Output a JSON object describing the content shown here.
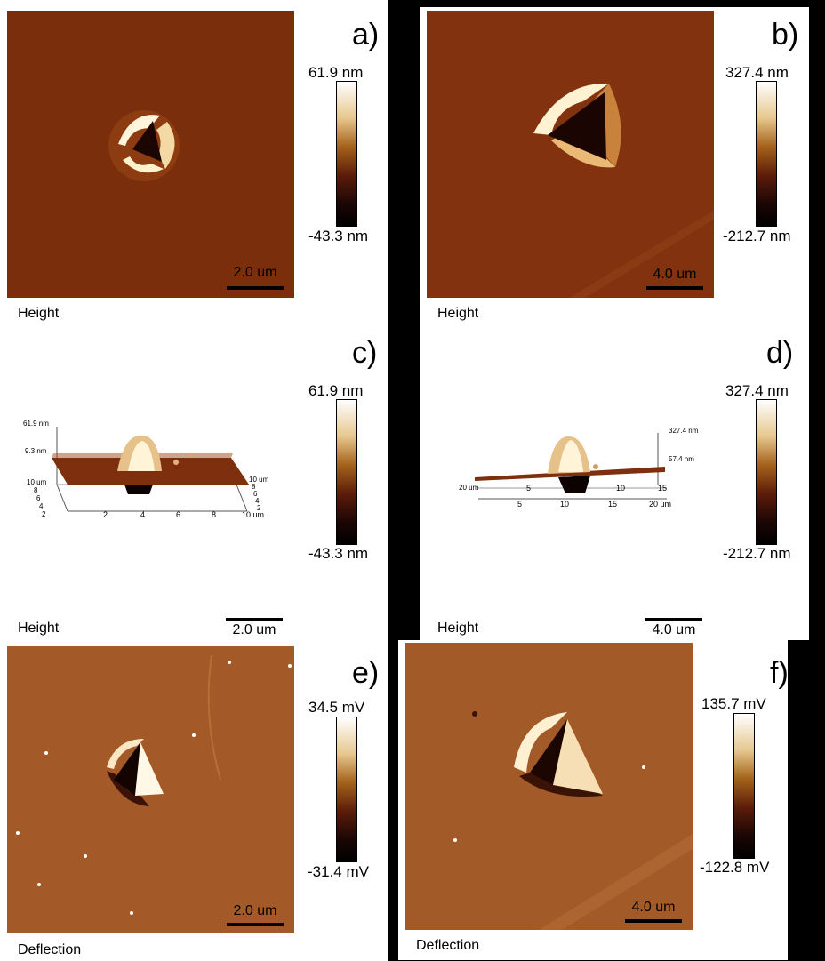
{
  "panels": {
    "a": {
      "letter": "a)",
      "cbar_max": "61.9 nm",
      "cbar_min": "-43.3 nm",
      "scale": "2.0 um",
      "caption": "Height"
    },
    "b": {
      "letter": "b)",
      "cbar_max": "327.4 nm",
      "cbar_min": "-212.7 nm",
      "scale": "4.0 um",
      "caption": "Height"
    },
    "c": {
      "letter": "c)",
      "cbar_max": "61.9 nm",
      "cbar_min": "-43.3 nm",
      "scale": "2.0 um",
      "caption": "Height",
      "z_top": "61.9 nm",
      "z_mid": "9.3 nm",
      "x_ticks": [
        "2",
        "4",
        "6",
        "8",
        "10 um"
      ],
      "y_ticks": [
        "10 um",
        "8",
        "6",
        "4",
        "2"
      ],
      "y_ticks_right": [
        "10 um",
        "8",
        "6",
        "4",
        "2"
      ]
    },
    "d": {
      "letter": "d)",
      "cbar_max": "327.4 nm",
      "cbar_min": "-212.7 nm",
      "scale": "4.0 um",
      "caption": "Height",
      "z_top": "327.4 nm",
      "z_mid": "57.4 nm",
      "x_ticks": [
        "5",
        "10",
        "15",
        "20 um"
      ],
      "x_ticks_back": [
        "5",
        "10",
        "15",
        "20 um"
      ]
    },
    "e": {
      "letter": "e)",
      "cbar_max": "34.5 mV",
      "cbar_min": "-31.4 mV",
      "scale": "2.0 um",
      "caption": "Deflection"
    },
    "f": {
      "letter": "f)",
      "cbar_max": "135.7 mV",
      "cbar_min": "-122.8 mV",
      "scale": "4.0 um",
      "caption": "Deflection"
    }
  },
  "colors": {
    "afm_dark": "#7a2e0c",
    "afm_mid": "#8b3a10",
    "deflection": "#a25a28",
    "panel_bg": "#ffffff"
  }
}
